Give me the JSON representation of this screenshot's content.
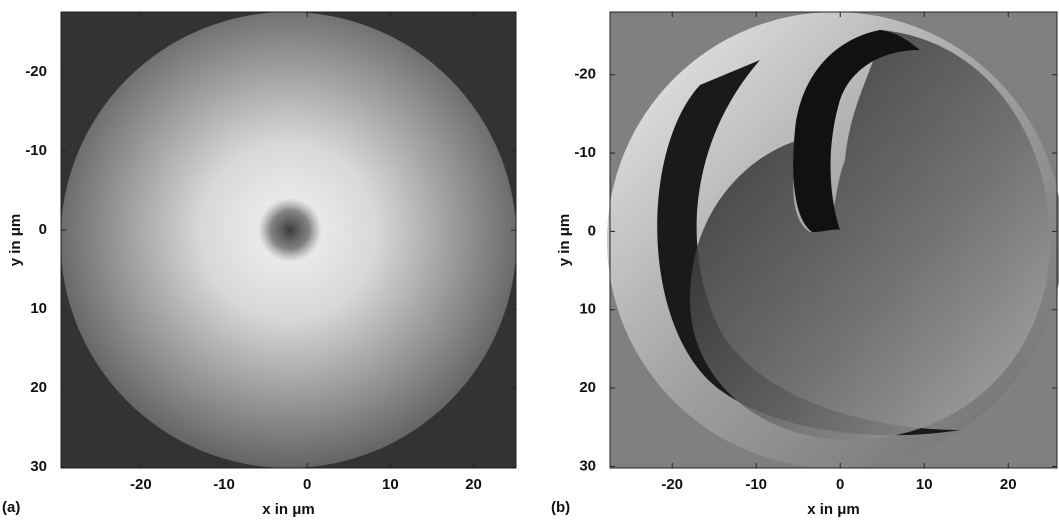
{
  "chart_data": [
    {
      "type": "image",
      "panel_label": "(a)",
      "x_label": "x in μm",
      "y_label": "y in μm",
      "xlim": [
        -29.6,
        25.1
      ],
      "ylim": [
        -27.6,
        30.1
      ],
      "y_reversed": true,
      "xticks": [
        -20,
        -10,
        0,
        10,
        20
      ],
      "yticks": [
        -20,
        -10,
        0,
        10,
        20,
        30
      ]
    },
    {
      "type": "image",
      "panel_label": "(b)",
      "x_label": "x in μm",
      "y_label": "y in μm",
      "xlim": [
        -27.4,
        25.8
      ],
      "ylim": [
        -28,
        30.2
      ],
      "y_reversed": true,
      "xticks": [
        -20,
        -10,
        0,
        10,
        20
      ],
      "yticks": [
        -20,
        -10,
        0,
        10,
        20,
        30
      ]
    }
  ]
}
